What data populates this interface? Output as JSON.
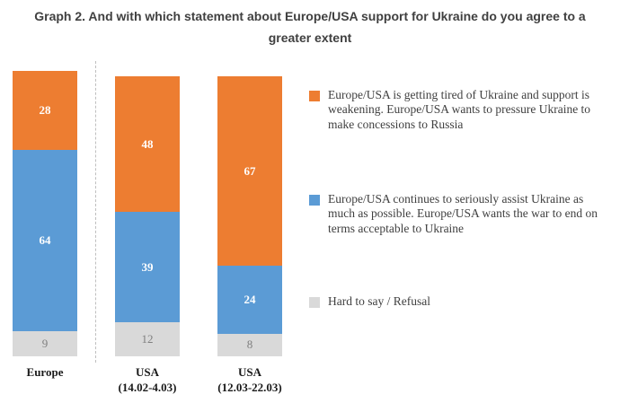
{
  "title": "Graph 2. And with which statement about Europe/USA support for Ukraine do you agree to a greater extent",
  "chart_data": {
    "type": "bar",
    "stacked": true,
    "orientation": "vertical",
    "grid": false,
    "ylim": [
      0,
      101
    ],
    "categories": [
      "Europe",
      "USA (14.02-4.03)",
      "USA (12.03-22.03)"
    ],
    "category_lines": [
      [
        "Europe"
      ],
      [
        "USA",
        "(14.02-4.03)"
      ],
      [
        "USA",
        "(12.03-22.03)"
      ]
    ],
    "series": [
      {
        "name": "Hard to say / Refusal",
        "color": "#d9d9d9",
        "label_color": "#7f7f7f",
        "label_bold": false,
        "values": [
          9,
          12,
          8
        ]
      },
      {
        "name": "Europe/USA continues to seriously assist Ukraine as much as possible. Europe/USA wants the war to end on terms acceptable to Ukraine",
        "color": "#5b9bd5",
        "label_color": "#ffffff",
        "label_bold": true,
        "values": [
          64,
          39,
          24
        ]
      },
      {
        "name": "Europe/USA is getting tired of Ukraine and support is weakening. Europe/USA wants to pressure Ukraine to make concessions to Russia",
        "color": "#ed7d31",
        "label_color": "#ffffff",
        "label_bold": true,
        "values": [
          28,
          48,
          67
        ]
      }
    ],
    "legend": {
      "position": "right",
      "items": [
        {
          "swatch": "#ed7d31",
          "text": "Europe/USA is getting tired of Ukraine and support is weakening. Europe/USA wants to pressure Ukraine to make concessions to Russia"
        },
        {
          "swatch": "#5b9bd5",
          "text": "Europe/USA continues to seriously assist Ukraine as much as possible. Europe/USA wants the war to end on terms acceptable to Ukraine"
        },
        {
          "swatch": "#d9d9d9",
          "text": "Hard to say / Refusal"
        }
      ]
    }
  }
}
